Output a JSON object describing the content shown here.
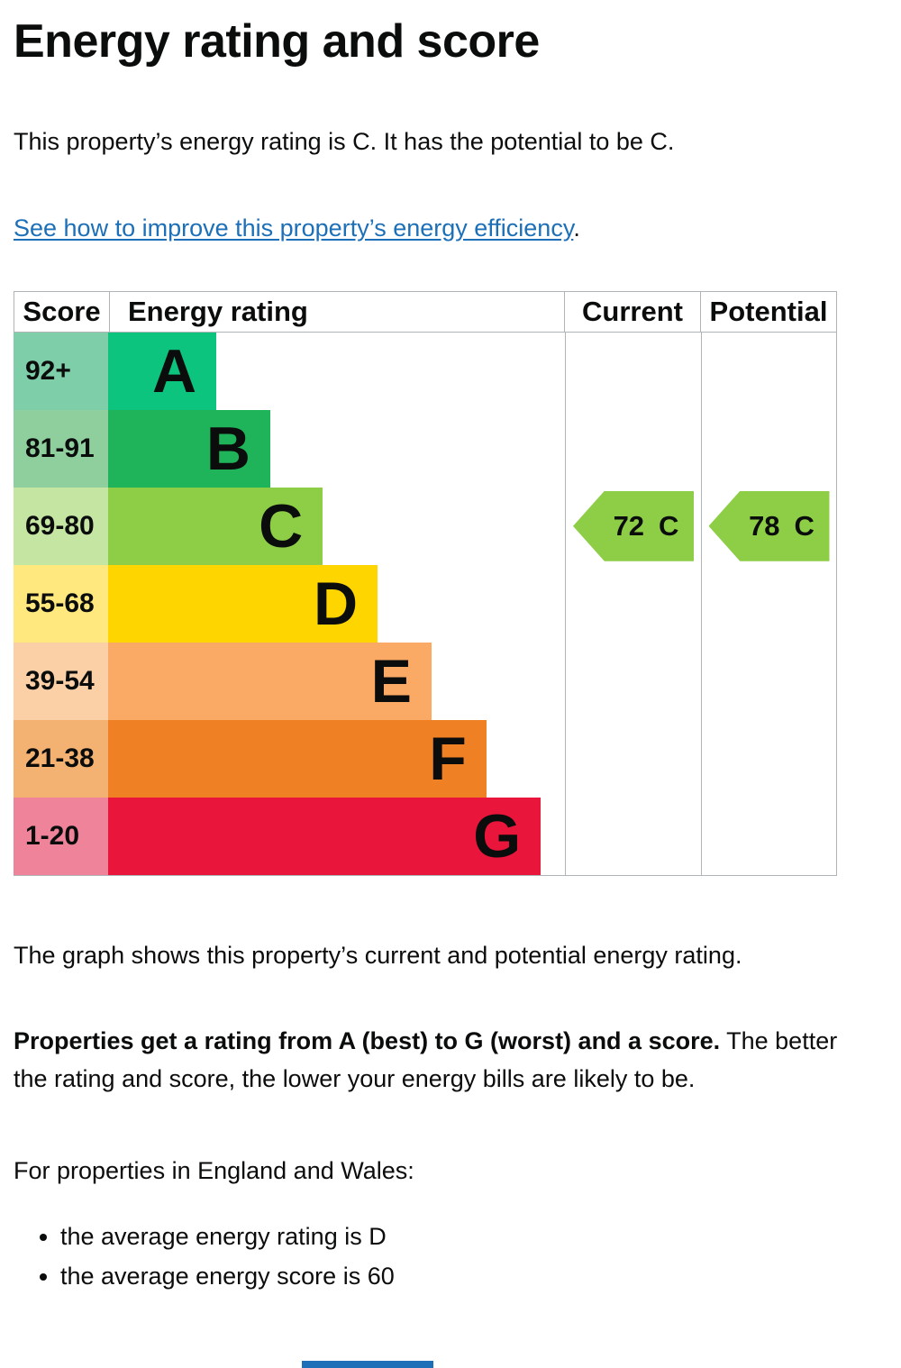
{
  "page": {
    "title": "Energy rating and score",
    "intro": "This property’s energy rating is C. It has the potential to be C.",
    "link_text": "See how to improve this property’s energy efficiency",
    "link_suffix": ".",
    "graph_caption": "The graph shows this property’s current and potential energy rating.",
    "lead_bold": "Properties get a rating from A (best) to G (worst) and a score.",
    "lead_rest": " The better the rating and score, the lower your energy bills are likely to be.",
    "region_line": "For properties in England and Wales:",
    "bullets": [
      "the average energy rating is D",
      "the average energy score is 60"
    ]
  },
  "table": {
    "headers": {
      "score": "Score",
      "rating": "Energy rating",
      "current": "Current",
      "potential": "Potential"
    },
    "bands": [
      {
        "score": "92+",
        "letter": "A",
        "color": "#0cc47e",
        "tint": "#7ecfa9",
        "width_pct": 23.7
      },
      {
        "score": "81-91",
        "letter": "B",
        "color": "#1fb45a",
        "tint": "#8fcf9e",
        "width_pct": 35.5
      },
      {
        "score": "69-80",
        "letter": "C",
        "color": "#8dce46",
        "tint": "#c5e6a2",
        "width_pct": 47.0
      },
      {
        "score": "55-68",
        "letter": "D",
        "color": "#ffd500",
        "tint": "#ffe87e",
        "width_pct": 59.0
      },
      {
        "score": "39-54",
        "letter": "E",
        "color": "#fbaa65",
        "tint": "#fcd0a7",
        "width_pct": 70.8
      },
      {
        "score": "21-38",
        "letter": "F",
        "color": "#ef8023",
        "tint": "#f4b272",
        "width_pct": 82.8
      },
      {
        "score": "1-20",
        "letter": "G",
        "color": "#e9153b",
        "tint": "#ef8399",
        "width_pct": 94.7
      }
    ],
    "current": {
      "value": "72",
      "letter": "C",
      "color": "#8dce46",
      "band_index": 2
    },
    "potential": {
      "value": "78",
      "letter": "C",
      "color": "#8dce46",
      "band_index": 2
    }
  },
  "chart_data": {
    "type": "bar",
    "title": "Energy rating and score",
    "orientation": "horizontal",
    "columns": [
      "Score",
      "Energy rating",
      "Current",
      "Potential"
    ],
    "categories": [
      "A",
      "B",
      "C",
      "D",
      "E",
      "F",
      "G"
    ],
    "score_ranges": [
      "92+",
      "81-91",
      "69-80",
      "55-68",
      "39-54",
      "21-38",
      "1-20"
    ],
    "relative_bar_widths_pct": [
      23.7,
      35.5,
      47.0,
      59.0,
      70.8,
      82.8,
      94.7
    ],
    "band_colors": [
      "#0cc47e",
      "#1fb45a",
      "#8dce46",
      "#ffd500",
      "#fbaa65",
      "#ef8023",
      "#e9153b"
    ],
    "current_rating": {
      "score": 72,
      "band": "C"
    },
    "potential_rating": {
      "score": 78,
      "band": "C"
    },
    "annotations": [
      "72 C",
      "78 C"
    ],
    "grid": false,
    "legend": false
  },
  "colors": {
    "text": "#0b0c0c",
    "link": "#1d70b8",
    "table_border": "#b1b4b6",
    "arrow_fill": "#8dce46",
    "bottom_partial": "#1d70b8"
  }
}
